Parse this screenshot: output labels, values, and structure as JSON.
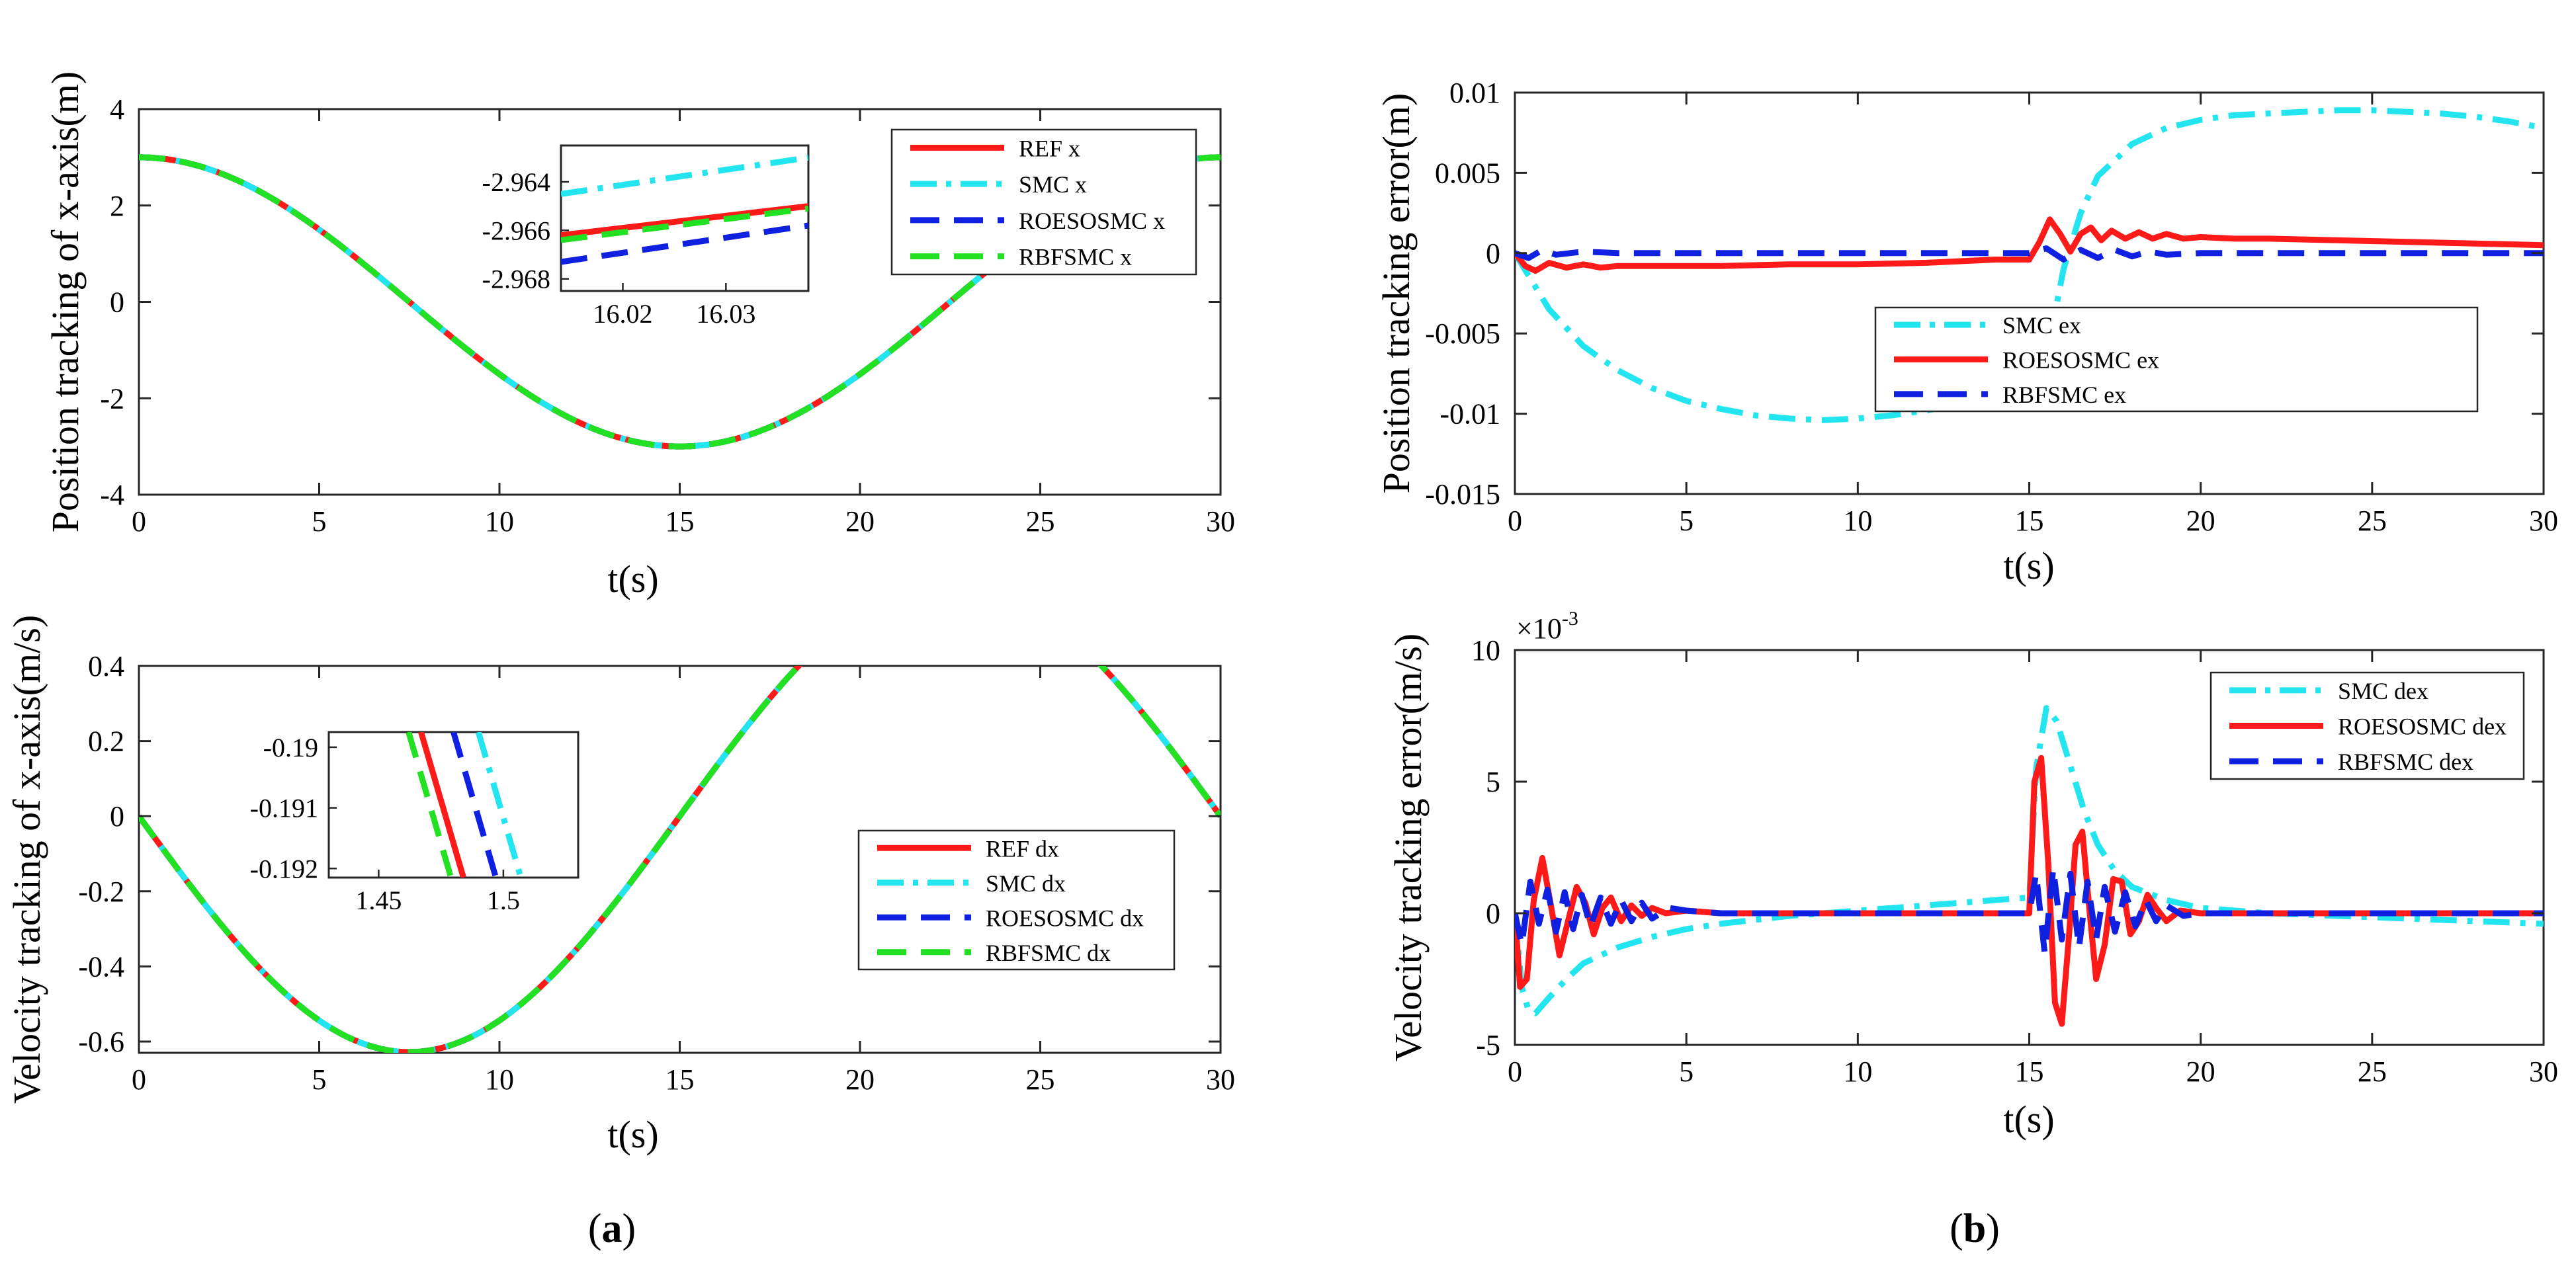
{
  "figure": {
    "caption_a": "(a)",
    "caption_b": "(b)",
    "caption_a_prefix": "(",
    "caption_a_letter": "a",
    "caption_a_suffix": ")",
    "caption_b_prefix": "(",
    "caption_b_letter": "b",
    "caption_b_suffix": ")"
  },
  "colors": {
    "ref": "#ff1a1a",
    "smc": "#22e5f0",
    "roesosmc": "#1020e0",
    "rbfsmc": "#22e022"
  },
  "chart_data": [
    {
      "id": "pos_x",
      "type": "line",
      "title": "",
      "xlabel": "t(s)",
      "ylabel": "Position tracking of x-axis(m)",
      "xlim": [
        0,
        30
      ],
      "ylim": [
        -4,
        4
      ],
      "xticks": [
        0,
        5,
        10,
        15,
        20,
        25,
        30
      ],
      "yticks": [
        -4,
        -2,
        0,
        2,
        4
      ],
      "ytick_labels": [
        "-4",
        "-2",
        "0",
        "2",
        "4"
      ],
      "legend": [
        "REF x",
        "SMC x",
        "ROESOSMC x",
        "RBFSMC x"
      ],
      "legend_position": "top-right",
      "series": [
        {
          "name": "REF x",
          "key": "ref",
          "style": "solid",
          "formula": "3cos(2*pi*t/30)"
        },
        {
          "name": "SMC x",
          "key": "smc",
          "style": "dashdot",
          "formula": "3cos(2*pi*t/30)"
        },
        {
          "name": "ROESOSMC x",
          "key": "roesosmc",
          "style": "dashed",
          "formula": "3cos(2*pi*t/30)"
        },
        {
          "name": "RBFSMC x",
          "key": "rbfsmc",
          "style": "dashed",
          "formula": "3cos(2*pi*t/30)"
        }
      ],
      "inset": {
        "xlim": [
          16.014,
          16.038
        ],
        "ylim": [
          -2.9685,
          -2.9625
        ],
        "xticks": [
          16.02,
          16.03
        ],
        "yticks": [
          -2.964,
          -2.966,
          -2.968
        ],
        "xtick_labels": [
          "16.02",
          "16.03"
        ],
        "ytick_labels": [
          "-2.964",
          "-2.966",
          "-2.968"
        ],
        "lines": [
          {
            "key": "smc",
            "style": "dashdot",
            "x": [
              16.014,
              16.038
            ],
            "y": [
              -2.9645,
              -2.963
            ]
          },
          {
            "key": "ref",
            "style": "solid",
            "x": [
              16.014,
              16.038
            ],
            "y": [
              -2.9662,
              -2.965
            ]
          },
          {
            "key": "rbfsmc",
            "style": "dashed",
            "x": [
              16.014,
              16.038
            ],
            "y": [
              -2.9664,
              -2.9651
            ]
          },
          {
            "key": "roesosmc",
            "style": "dashed",
            "x": [
              16.014,
              16.038
            ],
            "y": [
              -2.9673,
              -2.9658
            ]
          }
        ]
      }
    },
    {
      "id": "vel_x",
      "type": "line",
      "title": "",
      "xlabel": "t(s)",
      "ylabel": "Velocity tracking of x-axis(m/s)",
      "xlim": [
        0,
        30
      ],
      "ylim": [
        -0.63,
        0.4
      ],
      "xticks": [
        0,
        5,
        10,
        15,
        20,
        25,
        30
      ],
      "yticks": [
        -0.6,
        -0.4,
        -0.2,
        0,
        0.2,
        0.4
      ],
      "ytick_labels": [
        "-0.6",
        "-0.4",
        "-0.2",
        "0",
        "0.2",
        "0.4"
      ],
      "legend": [
        "REF dx",
        "SMC dx",
        "ROESOSMC dx",
        "RBFSMC dx"
      ],
      "legend_position": "bottom-right",
      "series": [
        {
          "name": "REF dx",
          "key": "ref",
          "style": "solid",
          "formula": "-0.628sin(2*pi*t/30)"
        },
        {
          "name": "SMC dx",
          "key": "smc",
          "style": "dashdot",
          "formula": "-0.628sin(2*pi*t/30)"
        },
        {
          "name": "ROESOSMC dx",
          "key": "roesosmc",
          "style": "dashed",
          "formula": "-0.628sin(2*pi*t/30)"
        },
        {
          "name": "RBFSMC dx",
          "key": "rbfsmc",
          "style": "dashed",
          "formula": "-0.628sin(2*pi*t/30)"
        }
      ],
      "inset": {
        "xlim": [
          1.43,
          1.53
        ],
        "ylim": [
          -0.19215,
          -0.18975
        ],
        "xticks": [
          1.45,
          1.5
        ],
        "yticks": [
          -0.19,
          -0.191,
          -0.192
        ],
        "xtick_labels": [
          "1.45",
          "1.5"
        ],
        "ytick_labels": [
          "-0.19",
          "-0.191",
          "-0.192"
        ],
        "lines": [
          {
            "key": "rbfsmc",
            "style": "dashed",
            "x": [
              1.462,
              1.479
            ],
            "y": [
              -0.18975,
              -0.19215
            ]
          },
          {
            "key": "ref",
            "style": "solid",
            "x": [
              1.467,
              1.484
            ],
            "y": [
              -0.18975,
              -0.19215
            ]
          },
          {
            "key": "roesosmc",
            "style": "dashed",
            "x": [
              1.48,
              1.497
            ],
            "y": [
              -0.18975,
              -0.19215
            ]
          },
          {
            "key": "smc",
            "style": "dashdot",
            "x": [
              1.49,
              1.507
            ],
            "y": [
              -0.18975,
              -0.19215
            ]
          }
        ]
      }
    },
    {
      "id": "pos_err",
      "type": "line",
      "title": "",
      "xlabel": "t(s)",
      "ylabel": "Position tracking error(m)",
      "xlim": [
        0,
        30
      ],
      "ylim": [
        -0.015,
        0.01
      ],
      "xticks": [
        0,
        5,
        10,
        15,
        20,
        25,
        30
      ],
      "yticks": [
        -0.015,
        -0.01,
        -0.005,
        0,
        0.005,
        0.01
      ],
      "ytick_labels": [
        "-0.015",
        "-0.01",
        "-0.005",
        "0",
        "0.005",
        "0.01"
      ],
      "legend": [
        "SMC ex",
        "ROESOSMC ex",
        "RBFSMC ex"
      ],
      "legend_position": "center-right",
      "series": [
        {
          "name": "SMC ex",
          "key": "smc",
          "style": "dashdot",
          "x": [
            0,
            1,
            2,
            3,
            4,
            5,
            6,
            7,
            8,
            9,
            10,
            11,
            12,
            13,
            14,
            15,
            15.5,
            16,
            16.5,
            17,
            18,
            19,
            20,
            21,
            22,
            23,
            24,
            25,
            26,
            27,
            28,
            29,
            30
          ],
          "y": [
            0,
            -0.0035,
            -0.0058,
            -0.0073,
            -0.0084,
            -0.0092,
            -0.0097,
            -0.0101,
            -0.0103,
            -0.0104,
            -0.0103,
            -0.0101,
            -0.0098,
            -0.0094,
            -0.0089,
            -0.0083,
            -0.0065,
            -0.001,
            0.0025,
            0.0048,
            0.0068,
            0.0078,
            0.0083,
            0.0086,
            0.0087,
            0.0088,
            0.0089,
            0.0089,
            0.0088,
            0.0087,
            0.0085,
            0.0082,
            0.0078
          ]
        },
        {
          "name": "ROESOSMC ex",
          "key": "ref",
          "style": "solid",
          "x": [
            0,
            0.3,
            0.6,
            1.0,
            1.5,
            2.0,
            2.5,
            3.0,
            4,
            6,
            8,
            10,
            12,
            14,
            15,
            15.3,
            15.6,
            15.9,
            16.2,
            16.5,
            16.8,
            17.1,
            17.4,
            17.8,
            18.2,
            18.6,
            19.0,
            19.5,
            20,
            21,
            22,
            24,
            26,
            28,
            30
          ],
          "y": [
            0,
            -0.0008,
            -0.0011,
            -0.0006,
            -0.0009,
            -0.0007,
            -0.0009,
            -0.0008,
            -0.0008,
            -0.0008,
            -0.0007,
            -0.0007,
            -0.0006,
            -0.0004,
            -0.0004,
            0.0007,
            0.0021,
            0.0012,
            0.0001,
            0.0012,
            0.0016,
            0.0008,
            0.0014,
            0.0009,
            0.0013,
            0.0009,
            0.0012,
            0.0009,
            0.001,
            0.0009,
            0.0009,
            0.0008,
            0.0007,
            0.0006,
            0.0005
          ]
        },
        {
          "name": "RBFSMC ex",
          "key": "roesosmc",
          "style": "dashed",
          "x": [
            0,
            0.4,
            0.8,
            1.2,
            2,
            3,
            5,
            10,
            15,
            15.5,
            16,
            16.5,
            17,
            17.5,
            18,
            18.5,
            19,
            20,
            22,
            25,
            30
          ],
          "y": [
            0,
            -0.0003,
            0.0002,
            -0.0001,
            0.0001,
            0,
            0,
            0,
            0,
            0.0003,
            -0.0004,
            0.0002,
            -0.0003,
            0.0002,
            -0.0002,
            0.0001,
            -0.0001,
            0,
            0,
            0,
            0
          ]
        }
      ]
    },
    {
      "id": "vel_err",
      "type": "line",
      "title": "",
      "xlabel": "t(s)",
      "ylabel": "Velocity tracking error(m/s)",
      "exponent_label": "×10",
      "exponent_power": "-3",
      "xlim": [
        0,
        30
      ],
      "ylim": [
        -5,
        10
      ],
      "y_scale": "1e-3",
      "xticks": [
        0,
        5,
        10,
        15,
        20,
        25,
        30
      ],
      "yticks": [
        -5,
        0,
        5,
        10
      ],
      "ytick_labels": [
        "-5",
        "0",
        "5",
        "10"
      ],
      "legend": [
        "SMC dex",
        "ROESOSMC dex",
        "RBFSMC dex"
      ],
      "legend_position": "top-right",
      "series": [
        {
          "name": "SMC dex",
          "key": "smc",
          "style": "dashdot",
          "x": [
            0,
            0.2,
            0.4,
            0.6,
            1.0,
            1.5,
            2,
            3,
            4,
            5,
            6,
            8,
            10,
            12,
            14,
            15,
            15.2,
            15.5,
            15.8,
            16.2,
            16.6,
            17,
            17.5,
            18,
            19,
            20,
            22,
            24,
            26,
            28,
            30
          ],
          "y": [
            0,
            -2.8,
            -3.7,
            -3.8,
            -3.2,
            -2.5,
            -1.9,
            -1.3,
            -0.9,
            -0.6,
            -0.4,
            -0.1,
            0.1,
            0.3,
            0.5,
            0.6,
            5.5,
            7.8,
            7.3,
            5.6,
            3.9,
            2.6,
            1.6,
            1.0,
            0.5,
            0.2,
            0.0,
            -0.1,
            -0.2,
            -0.3,
            -0.4
          ]
        },
        {
          "name": "ROESOSMC dex",
          "key": "ref",
          "style": "solid",
          "x": [
            0,
            0.15,
            0.35,
            0.55,
            0.8,
            1.05,
            1.3,
            1.55,
            1.8,
            2.05,
            2.3,
            2.55,
            2.8,
            3.1,
            3.4,
            3.7,
            4.0,
            4.4,
            5,
            6,
            8,
            10,
            12,
            14,
            15,
            15.15,
            15.35,
            15.55,
            15.75,
            15.95,
            16.15,
            16.35,
            16.55,
            16.75,
            16.95,
            17.2,
            17.45,
            17.7,
            17.95,
            18.2,
            18.45,
            18.7,
            19,
            19.4,
            20,
            22,
            25,
            30
          ],
          "y": [
            0,
            -2.8,
            -2.5,
            0.5,
            2.1,
            0.3,
            -1.6,
            -0.3,
            1.0,
            0.4,
            -0.8,
            0.2,
            0.6,
            -0.3,
            0.3,
            -0.1,
            0.2,
            0.0,
            0.1,
            0.0,
            0.0,
            0.0,
            0.0,
            0.0,
            0.0,
            5.0,
            5.9,
            2.0,
            -3.4,
            -4.2,
            -1.0,
            2.6,
            3.1,
            0.2,
            -2.5,
            -1.2,
            1.3,
            1.2,
            -0.8,
            -0.3,
            0.7,
            0.2,
            -0.3,
            0.1,
            0.0,
            0.0,
            0.0,
            0.0
          ]
        },
        {
          "name": "RBFSMC dex",
          "key": "roesosmc",
          "style": "dashed",
          "x": [
            0,
            0.2,
            0.45,
            0.7,
            0.95,
            1.2,
            1.45,
            1.7,
            1.95,
            2.2,
            2.5,
            2.8,
            3.1,
            3.4,
            3.7,
            4.0,
            4.5,
            5,
            6,
            10,
            15,
            15.2,
            15.45,
            15.7,
            15.95,
            16.2,
            16.45,
            16.7,
            16.95,
            17.2,
            17.5,
            17.8,
            18.1,
            18.4,
            18.7,
            19.0,
            19.5,
            20,
            25,
            30
          ],
          "y": [
            0,
            -1.2,
            1.2,
            -0.4,
            0.9,
            -0.7,
            0.8,
            -0.6,
            0.7,
            -0.5,
            0.6,
            -0.4,
            0.5,
            -0.3,
            0.4,
            -0.2,
            0.2,
            0.1,
            0.0,
            0.0,
            0.0,
            1.5,
            -1.5,
            1.7,
            -1.0,
            1.5,
            -1.3,
            1.2,
            -1.0,
            1.0,
            -0.7,
            0.8,
            -0.5,
            0.5,
            -0.3,
            0.3,
            -0.1,
            0.0,
            0.0,
            0.0
          ]
        }
      ]
    }
  ]
}
